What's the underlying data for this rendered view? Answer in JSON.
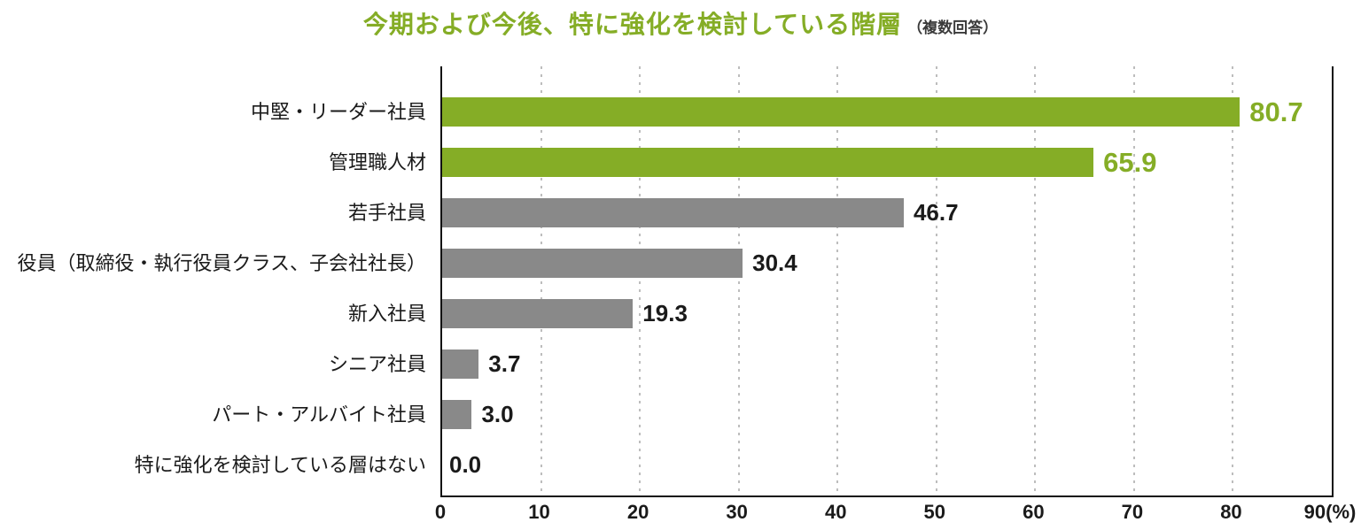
{
  "title": "今期および今後、特に強化を検討している階層",
  "title_note": "（複数回答）",
  "colors": {
    "highlight_green": "#85ad26",
    "bar_gray": "#898989",
    "label_black": "#1a1a1a",
    "grid_gray": "#bdbdbd",
    "axis_black": "#111111"
  },
  "chart_data": {
    "type": "bar",
    "orientation": "horizontal",
    "title": "今期および今後、特に強化を検討している階層（複数回答）",
    "categories": [
      "中堅・リーダー社員",
      "管理職人材",
      "若手社員",
      "役員（取締役・執行役員クラス、子会社社長）",
      "新入社員",
      "シニア社員",
      "パート・アルバイト社員",
      "特に強化を検討している層はない"
    ],
    "values": [
      80.7,
      65.9,
      46.7,
      30.4,
      19.3,
      3.7,
      3.0,
      0.0
    ],
    "value_labels": [
      "80.7",
      "65.9",
      "46.7",
      "30.4",
      "19.3",
      "3.7",
      "3.0",
      "0.0"
    ],
    "highlighted": [
      true,
      true,
      false,
      false,
      false,
      false,
      false,
      false
    ],
    "xlim": [
      0,
      90
    ],
    "x_ticks": [
      "0",
      "10",
      "20",
      "30",
      "40",
      "50",
      "60",
      "70",
      "80",
      "90"
    ],
    "x_unit": "(%)",
    "grid": "vertical-dotted",
    "legend": "none"
  }
}
